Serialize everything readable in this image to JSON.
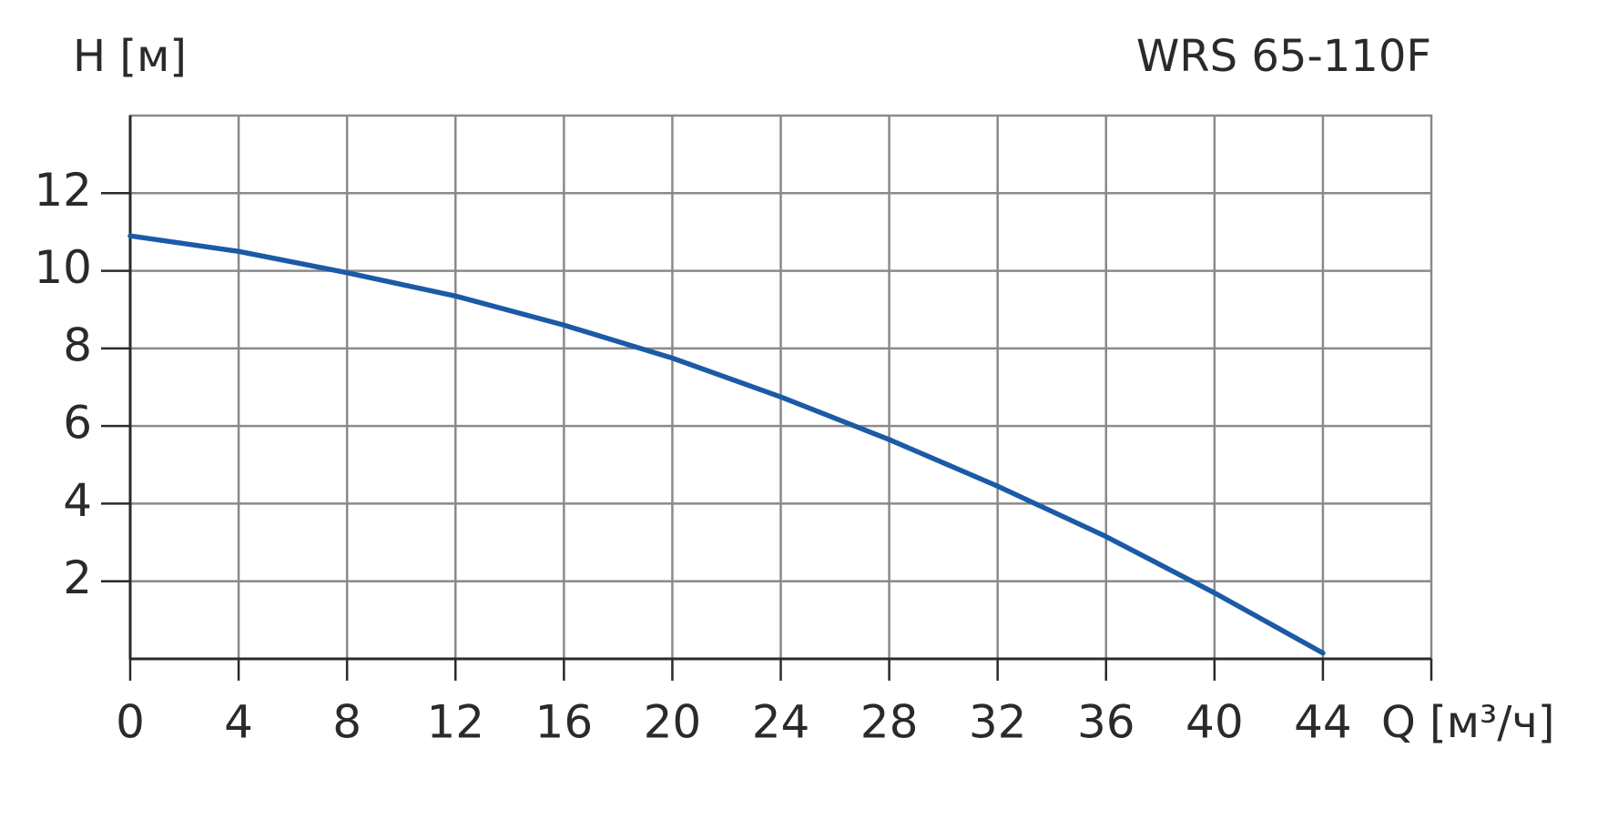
{
  "chart_data": {
    "type": "line",
    "title": "WRS 65-110F",
    "y_label": "H [м]",
    "x_label": "Q [м³/ч]",
    "x": [
      0,
      4,
      8,
      12,
      16,
      20,
      24,
      28,
      32,
      36,
      40,
      44
    ],
    "series": [
      {
        "color": "#1b5aa6",
        "values": [
          10.9,
          10.5,
          9.95,
          9.35,
          8.6,
          7.75,
          6.75,
          5.65,
          4.45,
          3.15,
          1.7,
          0.15
        ]
      }
    ],
    "xlim": [
      0,
      48
    ],
    "ylim": [
      0,
      14
    ],
    "xticks": [
      0,
      4,
      8,
      12,
      16,
      20,
      24,
      28,
      32,
      36,
      40,
      44
    ],
    "yticks": [
      2,
      4,
      6,
      8,
      10,
      12
    ],
    "grid": true
  }
}
